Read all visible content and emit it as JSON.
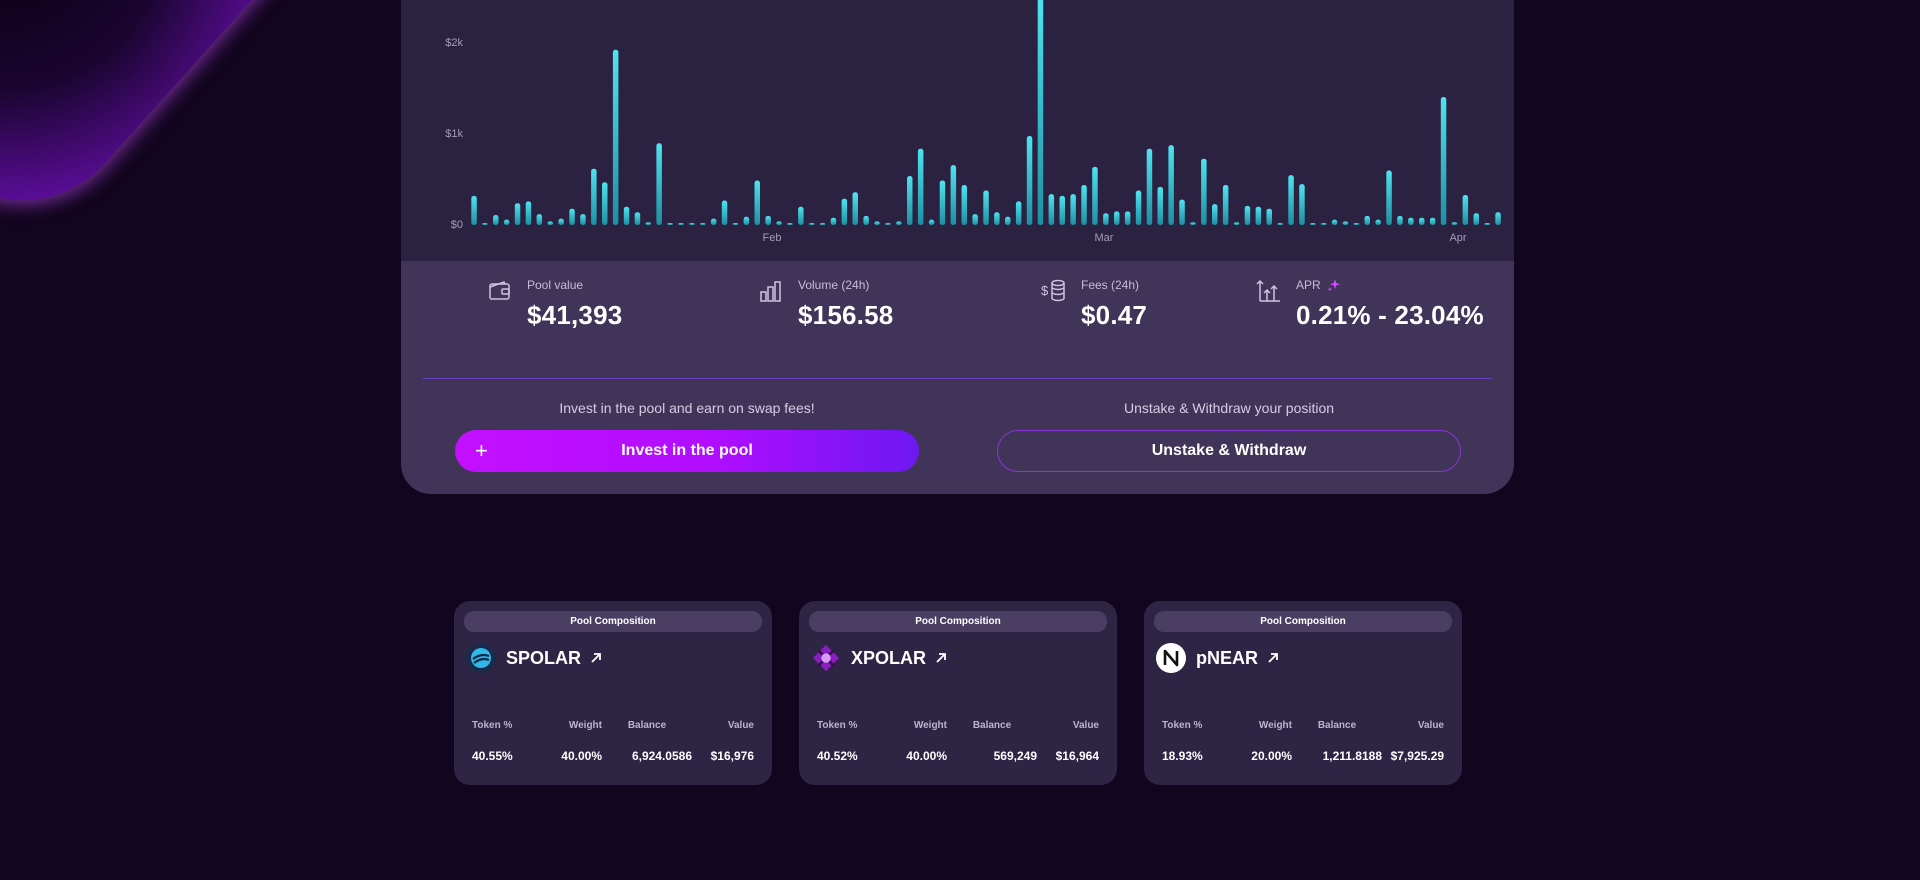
{
  "chart": {
    "y_ticks": [
      "$2k",
      "$1k",
      "$0"
    ],
    "x_ticks": [
      "Feb",
      "Mar",
      "Apr"
    ]
  },
  "chart_data": {
    "type": "bar",
    "ylabel": "",
    "xlabel": "",
    "y_ticks": [
      0,
      1000,
      2000
    ],
    "x_ticks": [
      "Feb",
      "Mar",
      "Apr"
    ],
    "values": [
      320,
      20,
      110,
      60,
      240,
      260,
      120,
      40,
      70,
      180,
      120,
      620,
      470,
      1930,
      200,
      140,
      30,
      900,
      10,
      10,
      10,
      20,
      70,
      270,
      20,
      90,
      490,
      100,
      40,
      20,
      200,
      20,
      20,
      80,
      290,
      360,
      100,
      40,
      20,
      40,
      540,
      840,
      60,
      490,
      660,
      440,
      120,
      380,
      140,
      90,
      260,
      980,
      2500,
      340,
      320,
      340,
      440,
      640,
      130,
      150,
      150,
      380,
      840,
      420,
      880,
      280,
      30,
      730,
      230,
      440,
      30,
      210,
      200,
      180,
      20,
      550,
      450,
      10,
      10,
      60,
      40,
      10,
      100,
      60,
      600,
      100,
      80,
      80,
      80,
      1410,
      30,
      330,
      130,
      10,
      140
    ],
    "ylim": [
      0,
      2500
    ]
  },
  "stats": {
    "pool_value": {
      "label": "Pool value",
      "value": "$41,393"
    },
    "volume": {
      "label": "Volume (24h)",
      "value": "$156.58"
    },
    "fees": {
      "label": "Fees (24h)",
      "value": "$0.47"
    },
    "apr": {
      "label": "APR",
      "value": "0.21% - 23.04%"
    }
  },
  "actions": {
    "invest_caption": "Invest in the pool and earn on swap fees!",
    "invest_label": "Invest in the pool",
    "withdraw_caption": "Unstake & Withdraw your position",
    "withdraw_label": "Unstake & Withdraw"
  },
  "composition": {
    "header": "Pool Composition",
    "columns": [
      "Token %",
      "Weight",
      "Balance",
      "Value"
    ],
    "tokens": [
      {
        "name": "SPOLAR",
        "token_pct": "40.55%",
        "weight": "40.00%",
        "balance": "6,924.0586",
        "value": "$16,976"
      },
      {
        "name": "XPOLAR",
        "token_pct": "40.52%",
        "weight": "40.00%",
        "balance": "569,249",
        "value": "$16,964"
      },
      {
        "name": "pNEAR",
        "token_pct": "18.93%",
        "weight": "20.00%",
        "balance": "1,211.8188",
        "value": "$7,925.29"
      }
    ]
  }
}
